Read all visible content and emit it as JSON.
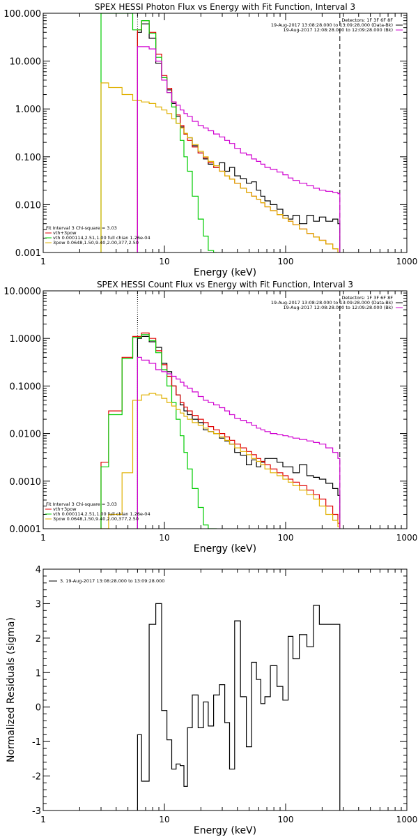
{
  "chart_data": [
    {
      "type": "line",
      "title": "SPEX HESSI Photon Flux vs Energy with Fit Function, Interval 3",
      "xlabel": "Energy (keV)",
      "ylabel": "",
      "xscale": "log",
      "yscale": "log",
      "xlim": [
        1,
        1000
      ],
      "ylim": [
        0.001,
        100
      ],
      "xticklabels": [
        "1",
        "10",
        "100",
        "1000"
      ],
      "yticks": [
        0.001,
        0.01,
        0.1,
        1,
        10,
        100
      ],
      "yticklabels": [
        "0.001",
        "0.010",
        "0.100",
        "1.000",
        "10.000",
        "100.000"
      ],
      "vlines": [
        {
          "x": 6,
          "style": "dotted"
        },
        {
          "x": 280,
          "style": "dashed"
        }
      ],
      "legend_top_right": [
        {
          "text": "Detectors: 1F 3F 6F 8F",
          "color": "#000000"
        },
        {
          "text": "19-Aug-2017 13:08:28.000 to 13:09:28.000 (Data-Bk)",
          "color": "#000000"
        },
        {
          "text": "19-Aug-2017 12:08:28.000 to 12:09:28.000 (Bk)",
          "color": "#d000d0"
        }
      ],
      "legend_bottom_left": [
        {
          "text": "Fit Interval 3   Chi-square = 3.03",
          "color": "#000000"
        },
        {
          "text": "vth+3pow",
          "color": "#e00000"
        },
        {
          "text": "vth 0.000114,2.51,1.00   full chian 1.26e-04",
          "color": "#00cc00"
        },
        {
          "text": "3pow 0.0648,1.50,9.40,2.00,377,2.50",
          "color": "#e0b000"
        }
      ],
      "series": [
        {
          "color": "#000000",
          "x": [
            6,
            7,
            8,
            9,
            10,
            11,
            12,
            13,
            14,
            15,
            16,
            18,
            20,
            22,
            24,
            27,
            30,
            33,
            36,
            40,
            45,
            50,
            55,
            60,
            65,
            70,
            80,
            90,
            100,
            110,
            120,
            140,
            160,
            180,
            200,
            230,
            260,
            280
          ],
          "values": [
            40,
            60,
            30,
            9,
            4.5,
            2.5,
            1.3,
            0.7,
            0.42,
            0.3,
            0.25,
            0.17,
            0.12,
            0.09,
            0.07,
            0.06,
            0.075,
            0.05,
            0.06,
            0.04,
            0.035,
            0.028,
            0.03,
            0.02,
            0.015,
            0.012,
            0.01,
            0.008,
            0.006,
            0.005,
            0.006,
            0.004,
            0.006,
            0.0045,
            0.0055,
            0.0045,
            0.005,
            0.004
          ]
        },
        {
          "color": "#e00000",
          "x": [
            6,
            7,
            8,
            9,
            10,
            11,
            12,
            13,
            14,
            15,
            16,
            18,
            20,
            22,
            24,
            27,
            30,
            33,
            36,
            40,
            45,
            50,
            55,
            60,
            65,
            70,
            80,
            90,
            100,
            110,
            120,
            140,
            160,
            180,
            200,
            230,
            260,
            280
          ],
          "values": [
            45,
            70,
            40,
            14,
            5,
            2.7,
            1.4,
            0.75,
            0.45,
            0.3,
            0.22,
            0.16,
            0.12,
            0.095,
            0.075,
            0.06,
            0.05,
            0.04,
            0.034,
            0.028,
            0.022,
            0.018,
            0.015,
            0.013,
            0.011,
            0.009,
            0.0075,
            0.0062,
            0.0052,
            0.0045,
            0.0038,
            0.0031,
            0.0025,
            0.0021,
            0.0018,
            0.0015,
            0.0012,
            0.001
          ]
        },
        {
          "color": "#00cc00",
          "x": [
            3,
            4,
            5,
            6,
            7,
            8,
            9,
            10,
            11,
            12,
            13,
            14,
            15,
            16,
            18,
            20,
            22,
            24,
            27
          ],
          "values": [
            100,
            100,
            100,
            45,
            70,
            38,
            12,
            4.5,
            2.2,
            1.1,
            0.5,
            0.22,
            0.1,
            0.05,
            0.015,
            0.005,
            0.0022,
            0.0011,
            0.0008
          ]
        },
        {
          "color": "#e0b000",
          "x": [
            3,
            4,
            5,
            6,
            7,
            8,
            9,
            10,
            11,
            12,
            13,
            14,
            15,
            16,
            18,
            20,
            22,
            24,
            27,
            30,
            33,
            36,
            40,
            45,
            50,
            55,
            60,
            65,
            70,
            80,
            90,
            100,
            110,
            120,
            140,
            160,
            180,
            200,
            230,
            260,
            280
          ],
          "values": [
            3.5,
            2.8,
            2.0,
            1.5,
            1.4,
            1.3,
            1.1,
            0.95,
            0.8,
            0.62,
            0.5,
            0.4,
            0.31,
            0.25,
            0.18,
            0.13,
            0.1,
            0.08,
            0.065,
            0.05,
            0.04,
            0.034,
            0.028,
            0.022,
            0.018,
            0.015,
            0.013,
            0.011,
            0.009,
            0.0075,
            0.0062,
            0.0052,
            0.0045,
            0.0038,
            0.0031,
            0.0025,
            0.0021,
            0.0018,
            0.0015,
            0.0012,
            0.001
          ]
        },
        {
          "color": "#d000d0",
          "x": [
            6,
            7,
            8,
            9,
            10,
            11,
            12,
            13,
            14,
            15,
            16,
            18,
            20,
            22,
            24,
            27,
            30,
            33,
            36,
            40,
            45,
            50,
            55,
            60,
            65,
            70,
            80,
            90,
            100,
            110,
            120,
            140,
            160,
            180,
            200,
            230,
            260,
            280
          ],
          "values": [
            20,
            20,
            18,
            10,
            4,
            2.2,
            1.4,
            1.2,
            0.95,
            0.8,
            0.7,
            0.55,
            0.45,
            0.4,
            0.35,
            0.3,
            0.26,
            0.22,
            0.19,
            0.15,
            0.12,
            0.11,
            0.09,
            0.08,
            0.07,
            0.06,
            0.055,
            0.048,
            0.042,
            0.036,
            0.032,
            0.028,
            0.025,
            0.022,
            0.02,
            0.019,
            0.018,
            0.017
          ]
        }
      ]
    },
    {
      "type": "line",
      "title": "SPEX HESSI Count Flux vs Energy with Fit Function, Interval 3",
      "xlabel": "Energy (keV)",
      "ylabel": "",
      "xscale": "log",
      "yscale": "log",
      "xlim": [
        1,
        1000
      ],
      "ylim": [
        0.0001,
        10
      ],
      "xticklabels": [
        "1",
        "10",
        "100",
        "1000"
      ],
      "yticks": [
        0.0001,
        0.001,
        0.01,
        0.1,
        1,
        10
      ],
      "yticklabels": [
        "0.0001",
        "0.0010",
        "0.0100",
        "0.1000",
        "1.0000",
        "10.0000"
      ],
      "vlines": [
        {
          "x": 6,
          "style": "dotted"
        },
        {
          "x": 280,
          "style": "dashed"
        }
      ],
      "legend_top_right": [
        {
          "text": "Detectors: 1F 3F 6F 8F",
          "color": "#000000"
        },
        {
          "text": "19-Aug-2017 13:08:28.000 to 13:09:28.000 (Data-Bk)",
          "color": "#000000"
        },
        {
          "text": "19-Aug-2017 12:08:28.000 to 12:09:28.000 (Bk)",
          "color": "#d000d0"
        }
      ],
      "legend_bottom_left": [
        {
          "text": "Fit Interval 3   Chi-square = 3.03",
          "color": "#000000"
        },
        {
          "text": "vth+3pow",
          "color": "#e00000"
        },
        {
          "text": "vth 0.000114,2.51,1.00   full chian 1.26e-04",
          "color": "#00cc00"
        },
        {
          "text": "3pow 0.0648,1.50,9.40,2.00,377,2.50",
          "color": "#e0b000"
        }
      ],
      "series": [
        {
          "color": "#000000",
          "x": [
            6,
            7,
            8,
            9,
            10,
            11,
            12,
            13,
            14,
            15,
            16,
            18,
            20,
            22,
            24,
            27,
            30,
            33,
            36,
            40,
            45,
            50,
            55,
            60,
            65,
            70,
            80,
            90,
            100,
            110,
            120,
            140,
            160,
            180,
            200,
            230,
            260,
            280
          ],
          "values": [
            1.0,
            1.1,
            0.85,
            0.65,
            0.3,
            0.2,
            0.1,
            0.065,
            0.04,
            0.03,
            0.025,
            0.02,
            0.017,
            0.012,
            0.011,
            0.01,
            0.008,
            0.007,
            0.006,
            0.004,
            0.0035,
            0.0022,
            0.0028,
            0.002,
            0.0025,
            0.003,
            0.003,
            0.0025,
            0.002,
            0.002,
            0.0015,
            0.0022,
            0.0013,
            0.0012,
            0.0011,
            0.0009,
            0.0007,
            0.0005
          ]
        },
        {
          "color": "#e00000",
          "x": [
            3,
            4,
            5,
            6,
            7,
            8,
            9,
            10,
            11,
            12,
            13,
            14,
            15,
            16,
            18,
            20,
            22,
            24,
            27,
            30,
            33,
            36,
            40,
            45,
            50,
            55,
            60,
            65,
            70,
            80,
            90,
            100,
            110,
            120,
            140,
            160,
            180,
            200,
            230,
            260,
            280
          ],
          "values": [
            0.0025,
            0.03,
            0.4,
            1.1,
            1.3,
            1.0,
            0.55,
            0.28,
            0.16,
            0.1,
            0.065,
            0.045,
            0.036,
            0.03,
            0.024,
            0.02,
            0.017,
            0.014,
            0.012,
            0.01,
            0.0085,
            0.0072,
            0.006,
            0.005,
            0.0042,
            0.0036,
            0.003,
            0.0026,
            0.0022,
            0.0018,
            0.0015,
            0.0013,
            0.0011,
            0.00095,
            0.0008,
            0.00065,
            0.00052,
            0.00042,
            0.0003,
            0.0002,
            0.00013
          ]
        },
        {
          "color": "#00cc00",
          "x": [
            3,
            4,
            5,
            6,
            7,
            8,
            9,
            10,
            11,
            12,
            13,
            14,
            15,
            16,
            18,
            20,
            22,
            24,
            27
          ],
          "values": [
            0.002,
            0.025,
            0.38,
            1.05,
            1.2,
            0.9,
            0.5,
            0.22,
            0.1,
            0.045,
            0.02,
            0.009,
            0.004,
            0.0018,
            0.0007,
            0.00028,
            0.00012,
            0.0001,
            0.0001
          ]
        },
        {
          "color": "#e0b000",
          "x": [
            3,
            4,
            5,
            6,
            7,
            8,
            9,
            10,
            11,
            12,
            13,
            14,
            15,
            16,
            18,
            20,
            22,
            24,
            27,
            30,
            33,
            36,
            40,
            45,
            50,
            55,
            60,
            65,
            70,
            80,
            90,
            100,
            110,
            120,
            140,
            160,
            180,
            200,
            230,
            260,
            280
          ],
          "values": [
            0.0001,
            0.0002,
            0.0015,
            0.05,
            0.065,
            0.07,
            0.065,
            0.055,
            0.045,
            0.038,
            0.032,
            0.027,
            0.023,
            0.02,
            0.017,
            0.015,
            0.013,
            0.011,
            0.01,
            0.0085,
            0.0072,
            0.006,
            0.005,
            0.0042,
            0.0036,
            0.003,
            0.0026,
            0.0022,
            0.0018,
            0.0015,
            0.0013,
            0.0011,
            0.00095,
            0.0008,
            0.00065,
            0.00052,
            0.00042,
            0.0003,
            0.0002,
            0.00015,
            0.00011
          ]
        },
        {
          "color": "#d000d0",
          "x": [
            6,
            7,
            8,
            9,
            10,
            11,
            12,
            13,
            14,
            15,
            16,
            18,
            20,
            22,
            24,
            27,
            30,
            33,
            36,
            40,
            45,
            50,
            55,
            60,
            65,
            70,
            80,
            90,
            100,
            110,
            120,
            140,
            160,
            180,
            200,
            230,
            260,
            280
          ],
          "values": [
            0.4,
            0.35,
            0.3,
            0.22,
            0.2,
            0.18,
            0.16,
            0.14,
            0.12,
            0.1,
            0.09,
            0.075,
            0.06,
            0.05,
            0.045,
            0.04,
            0.035,
            0.03,
            0.025,
            0.021,
            0.019,
            0.017,
            0.015,
            0.013,
            0.012,
            0.011,
            0.01,
            0.0095,
            0.009,
            0.0085,
            0.008,
            0.0075,
            0.007,
            0.0065,
            0.006,
            0.005,
            0.004,
            0.003
          ]
        }
      ]
    },
    {
      "type": "line",
      "title": "",
      "xlabel": "Energy (keV)",
      "ylabel": "Normalized Residuals (sigma)",
      "xscale": "log",
      "yscale": "linear",
      "xlim": [
        1,
        1000
      ],
      "ylim": [
        -3,
        4
      ],
      "xticklabels": [
        "1",
        "10",
        "100",
        "1000"
      ],
      "yticks": [
        -3,
        -2,
        -1,
        0,
        1,
        2,
        3,
        4
      ],
      "yticklabels": [
        "-3",
        "-2",
        "-1",
        "0",
        "1",
        "2",
        "3",
        "4"
      ],
      "legend_top_left": [
        {
          "text": "3. 19-Aug-2017 13:08:28.000 to 13:09:28.000",
          "color": "#000000"
        }
      ],
      "series": [
        {
          "color": "#000000",
          "x": [
            6,
            7,
            8,
            9,
            10,
            11,
            12,
            13,
            14,
            15,
            16,
            18,
            20,
            22,
            24,
            27,
            30,
            33,
            36,
            40,
            45,
            50,
            55,
            60,
            65,
            70,
            80,
            90,
            100,
            110,
            120,
            140,
            160,
            180,
            200,
            230,
            260,
            280
          ],
          "values": [
            -0.8,
            -2.15,
            2.4,
            3.0,
            -0.1,
            -0.95,
            -1.8,
            -1.65,
            -1.7,
            -2.3,
            -0.6,
            0.35,
            -0.6,
            0.15,
            -0.55,
            0.35,
            0.65,
            -0.45,
            -1.8,
            2.5,
            0.3,
            -1.15,
            1.3,
            0.8,
            0.1,
            0.3,
            1.2,
            0.6,
            0.2,
            2.05,
            1.4,
            2.1,
            1.75,
            2.95,
            2.4,
            2.4,
            2.4,
            2.4
          ]
        }
      ]
    }
  ]
}
